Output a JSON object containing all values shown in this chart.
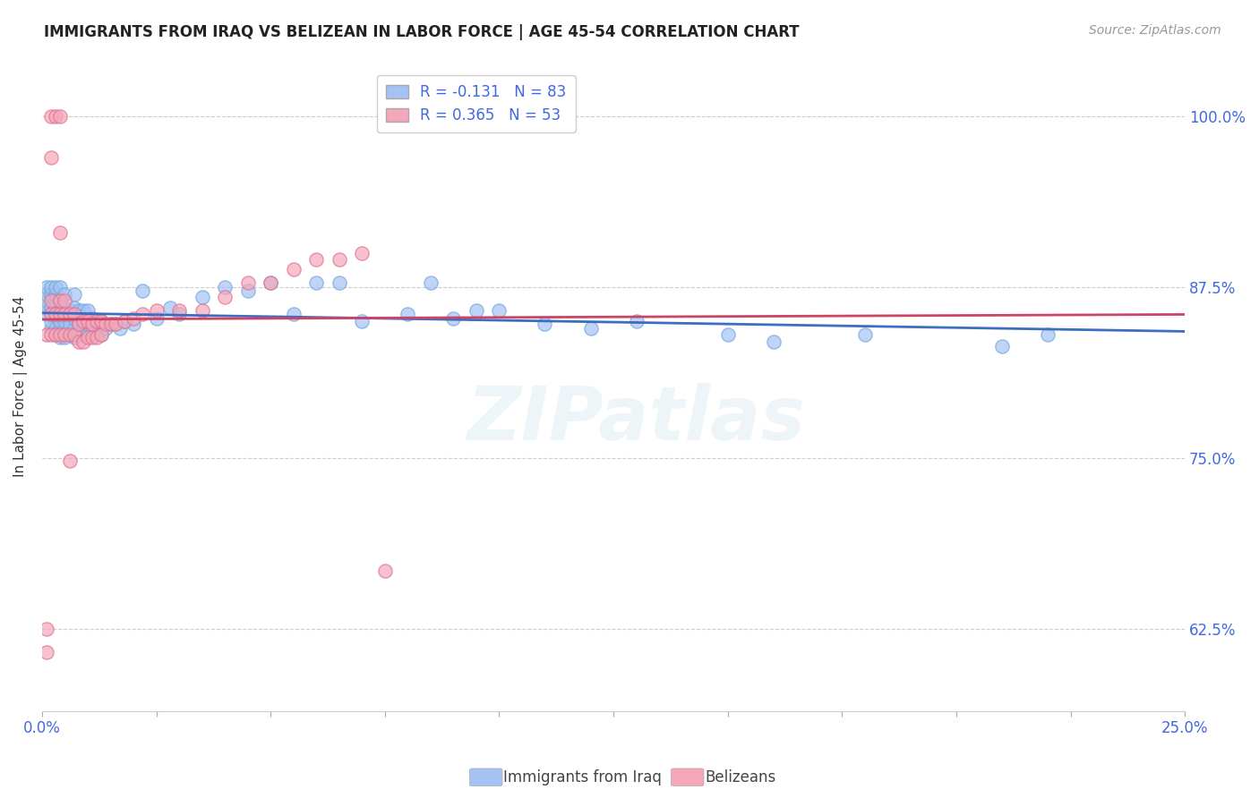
{
  "title": "IMMIGRANTS FROM IRAQ VS BELIZEAN IN LABOR FORCE | AGE 45-54 CORRELATION CHART",
  "source": "Source: ZipAtlas.com",
  "ylabel": "In Labor Force | Age 45-54",
  "ytick_labels": [
    "62.5%",
    "75.0%",
    "87.5%",
    "100.0%"
  ],
  "ytick_values": [
    0.625,
    0.75,
    0.875,
    1.0
  ],
  "xlim": [
    0.0,
    0.25
  ],
  "ylim": [
    0.565,
    1.04
  ],
  "legend1_label": "R = -0.131   N = 83",
  "legend2_label": "R = 0.365   N = 53",
  "legend_color1": "#a4c2f4",
  "legend_color2": "#f4a7b9",
  "iraq_color": "#a4c2f4",
  "belizean_color": "#f4a7b9",
  "iraq_edge_color": "#6fa8dc",
  "belizean_edge_color": "#e07090",
  "iraq_trend_color": "#3d6cc0",
  "belizean_trend_color": "#cc4466",
  "iraq_points_x": [
    0.001,
    0.001,
    0.001,
    0.001,
    0.001,
    0.002,
    0.002,
    0.002,
    0.002,
    0.002,
    0.002,
    0.003,
    0.003,
    0.003,
    0.003,
    0.003,
    0.003,
    0.003,
    0.004,
    0.004,
    0.004,
    0.004,
    0.004,
    0.004,
    0.005,
    0.005,
    0.005,
    0.005,
    0.005,
    0.006,
    0.006,
    0.006,
    0.007,
    0.007,
    0.007,
    0.007,
    0.007,
    0.008,
    0.008,
    0.008,
    0.009,
    0.009,
    0.009,
    0.01,
    0.01,
    0.01,
    0.011,
    0.011,
    0.012,
    0.012,
    0.013,
    0.013,
    0.014,
    0.015,
    0.016,
    0.017,
    0.018,
    0.02,
    0.022,
    0.025,
    0.028,
    0.03,
    0.035,
    0.04,
    0.045,
    0.05,
    0.055,
    0.06,
    0.065,
    0.07,
    0.08,
    0.085,
    0.09,
    0.095,
    0.1,
    0.11,
    0.12,
    0.13,
    0.15,
    0.16,
    0.18,
    0.21,
    0.22
  ],
  "iraq_points_y": [
    0.855,
    0.86,
    0.865,
    0.87,
    0.875,
    0.845,
    0.85,
    0.855,
    0.86,
    0.87,
    0.875,
    0.84,
    0.845,
    0.855,
    0.86,
    0.865,
    0.87,
    0.875,
    0.838,
    0.845,
    0.85,
    0.858,
    0.865,
    0.875,
    0.838,
    0.845,
    0.85,
    0.86,
    0.87,
    0.84,
    0.848,
    0.858,
    0.838,
    0.845,
    0.852,
    0.86,
    0.87,
    0.84,
    0.848,
    0.858,
    0.84,
    0.85,
    0.858,
    0.84,
    0.848,
    0.858,
    0.842,
    0.852,
    0.84,
    0.85,
    0.84,
    0.85,
    0.845,
    0.848,
    0.848,
    0.845,
    0.85,
    0.848,
    0.872,
    0.852,
    0.86,
    0.855,
    0.868,
    0.875,
    0.872,
    0.878,
    0.855,
    0.878,
    0.878,
    0.85,
    0.855,
    0.878,
    0.852,
    0.858,
    0.858,
    0.848,
    0.845,
    0.85,
    0.84,
    0.835,
    0.84,
    0.832,
    0.84
  ],
  "belizean_points_x": [
    0.001,
    0.001,
    0.001,
    0.002,
    0.002,
    0.002,
    0.002,
    0.002,
    0.003,
    0.003,
    0.003,
    0.004,
    0.004,
    0.004,
    0.004,
    0.004,
    0.005,
    0.005,
    0.005,
    0.006,
    0.006,
    0.006,
    0.007,
    0.007,
    0.008,
    0.008,
    0.009,
    0.009,
    0.01,
    0.01,
    0.011,
    0.011,
    0.012,
    0.012,
    0.013,
    0.013,
    0.014,
    0.015,
    0.016,
    0.018,
    0.02,
    0.022,
    0.025,
    0.03,
    0.035,
    0.04,
    0.045,
    0.05,
    0.055,
    0.06,
    0.065,
    0.07,
    0.075
  ],
  "belizean_points_y": [
    0.625,
    0.608,
    0.84,
    0.84,
    0.855,
    0.865,
    0.97,
    1.0,
    0.84,
    0.855,
    1.0,
    0.84,
    0.855,
    0.865,
    0.915,
    1.0,
    0.84,
    0.855,
    0.865,
    0.748,
    0.84,
    0.855,
    0.84,
    0.855,
    0.835,
    0.848,
    0.835,
    0.85,
    0.838,
    0.85,
    0.838,
    0.848,
    0.838,
    0.85,
    0.84,
    0.85,
    0.848,
    0.848,
    0.848,
    0.85,
    0.852,
    0.855,
    0.858,
    0.858,
    0.858,
    0.868,
    0.878,
    0.878,
    0.888,
    0.895,
    0.895,
    0.9,
    0.668
  ],
  "watermark_text": "ZIPatlas",
  "footer_left": "Immigrants from Iraq",
  "footer_right": "Belizeans"
}
